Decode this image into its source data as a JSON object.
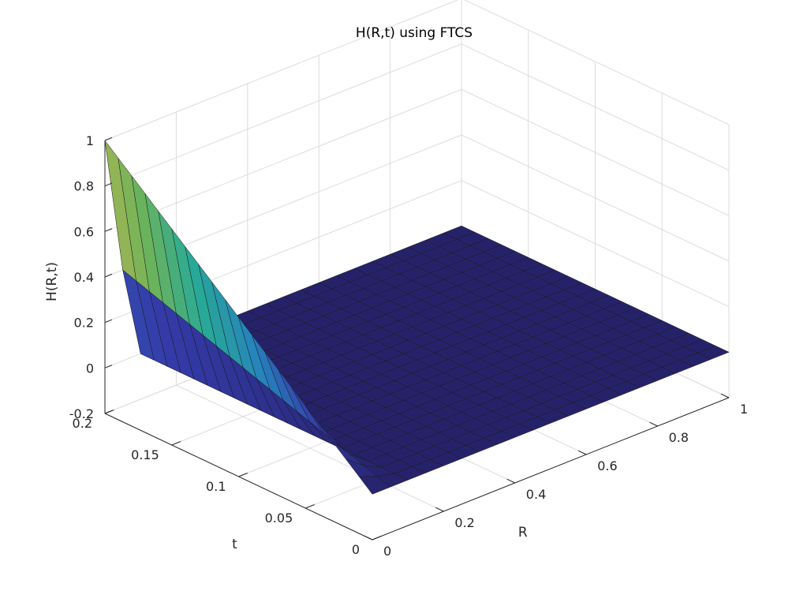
{
  "chart_data": {
    "type": "surface",
    "title": "H(R,t) using FTCS",
    "xlabel": "R",
    "ylabel": "t",
    "zlabel": "H(R,t)",
    "xlim": [
      0,
      1
    ],
    "ylim": [
      0,
      0.2
    ],
    "zlim": [
      -0.2,
      1
    ],
    "x_ticks": [
      "0",
      "0.2",
      "0.4",
      "0.6",
      "0.8",
      "1"
    ],
    "y_ticks": [
      "0",
      "0.05",
      "0.1",
      "0.15",
      "0.2"
    ],
    "z_ticks": [
      "-0.2",
      "0",
      "0.2",
      "0.4",
      "0.6",
      "0.8",
      "1"
    ],
    "grid": true,
    "colormap": "parula",
    "surface": {
      "R": [
        0,
        0.05,
        0.1,
        0.15,
        0.2,
        0.25,
        0.3,
        0.35,
        0.4,
        0.45,
        0.5,
        0.55,
        0.6,
        0.65,
        0.7,
        0.75,
        0.8,
        0.85,
        0.9,
        0.95,
        1.0
      ],
      "t": [
        0,
        0.01,
        0.02,
        0.03,
        0.04,
        0.05,
        0.06,
        0.07,
        0.08,
        0.09,
        0.1,
        0.11,
        0.12,
        0.13,
        0.14,
        0.15,
        0.16,
        0.17,
        0.18,
        0.19,
        0.2
      ],
      "H_at_R0_t0": 0.0,
      "H_at_R0_t0.2": 1.0,
      "H_at_R0.05_t0.2": 0.4,
      "H_elsewhere": 0.0
    }
  }
}
